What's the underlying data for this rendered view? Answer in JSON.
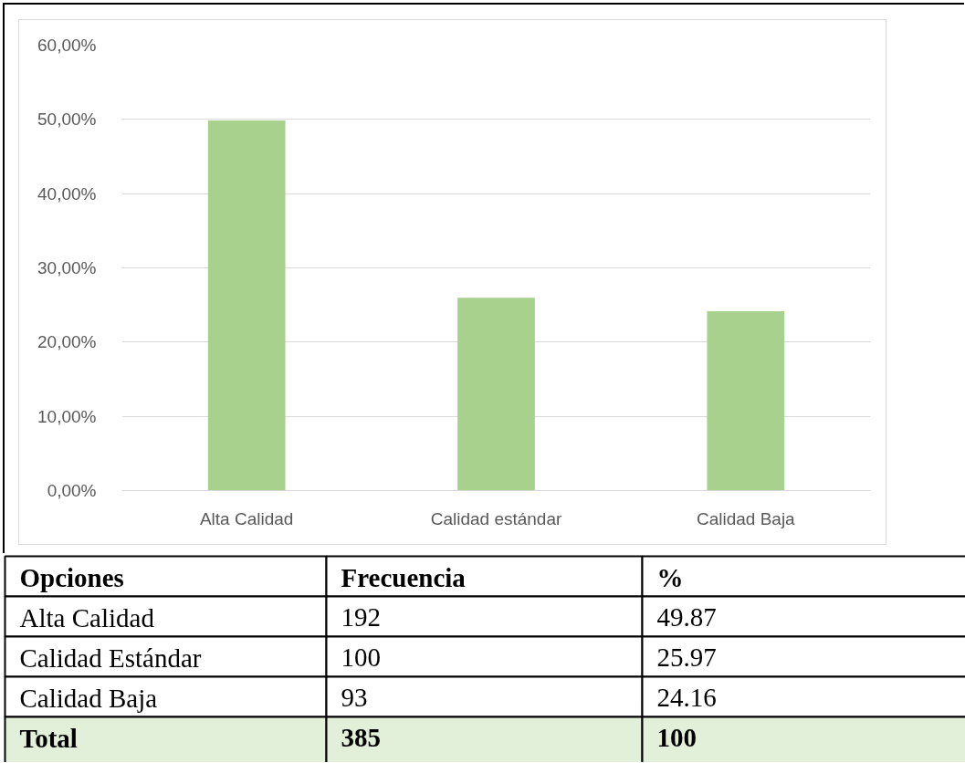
{
  "chart_data": [
    {
      "type": "bar",
      "categories": [
        "Alta Calidad",
        "Calidad estándar",
        "Calidad Baja"
      ],
      "values": [
        49.87,
        25.97,
        24.16
      ],
      "color": "#a9d18e",
      "ylim": [
        0,
        60
      ],
      "yticks": [
        {
          "value": 0,
          "label": "0,00%"
        },
        {
          "value": 10,
          "label": "10,00%"
        },
        {
          "value": 20,
          "label": "20,00%"
        },
        {
          "value": 30,
          "label": "30,00%"
        },
        {
          "value": 40,
          "label": "40,00%"
        },
        {
          "value": 50,
          "label": "50,00%"
        },
        {
          "value": 60,
          "label": "60,00%"
        }
      ],
      "grid": "y"
    },
    {
      "type": "other",
      "xlabel": "Opciones",
      "categories": [
        "Alta Calidad",
        "Calidad Estándar",
        "Calidad Baja",
        "Total"
      ],
      "colors": [
        "#ffffff",
        "#ffffff",
        "#ffffff",
        "#e2efd9"
      ],
      "series": [
        {
          "name": "Frecuencia",
          "color": "#000000",
          "values": [
            192,
            100,
            93,
            385
          ]
        },
        {
          "name": "%",
          "color": "#000000",
          "values": [
            49.87,
            25.97,
            24.16,
            100
          ]
        }
      ],
      "data_labels": true
    }
  ]
}
